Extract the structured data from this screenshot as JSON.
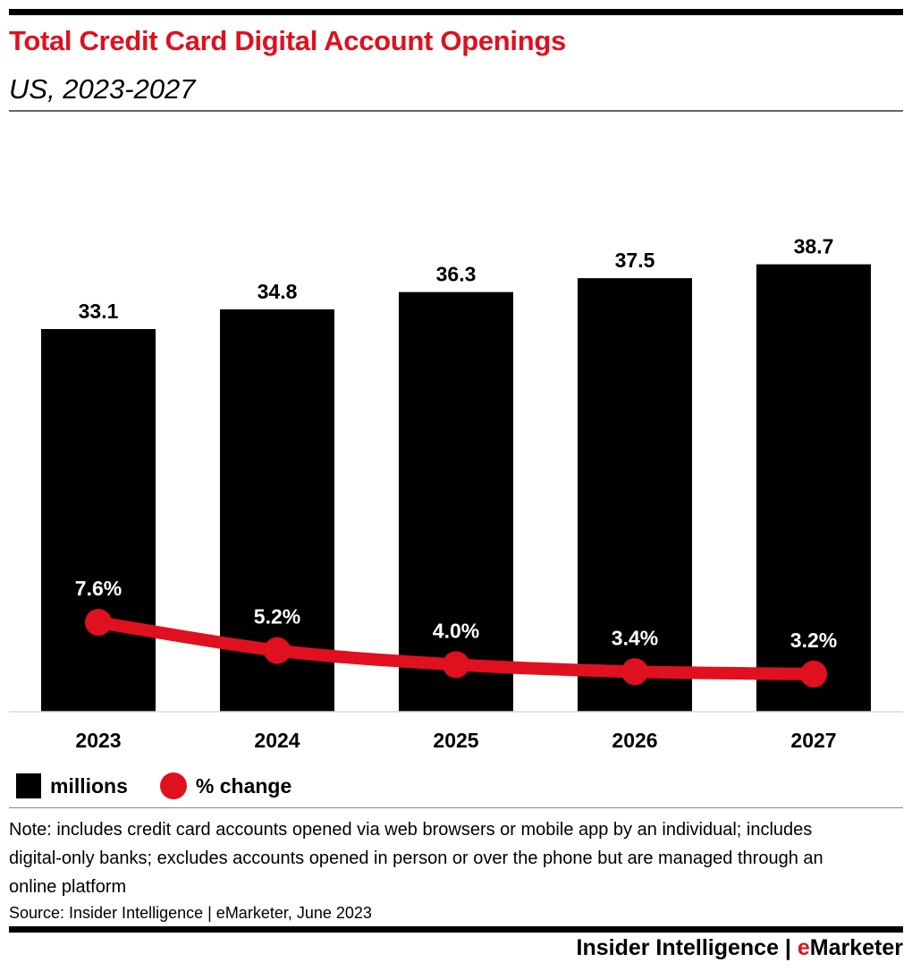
{
  "chart_data": {
    "type": "bar",
    "title": "Total Credit Card Digital Account Openings",
    "subtitle": "US, 2023-2027",
    "categories": [
      "2023",
      "2024",
      "2025",
      "2026",
      "2027"
    ],
    "series": [
      {
        "name": "millions",
        "type": "bar",
        "values": [
          33.1,
          34.8,
          36.3,
          37.5,
          38.7
        ],
        "labels": [
          "33.1",
          "34.8",
          "36.3",
          "37.5",
          "38.7"
        ],
        "color": "#000000"
      },
      {
        "name": "% change",
        "type": "line",
        "values": [
          7.6,
          5.2,
          4.0,
          3.4,
          3.2
        ],
        "labels": [
          "7.6%",
          "5.2%",
          "4.0%",
          "3.4%",
          "3.2%"
        ],
        "color": "#e0101e"
      }
    ],
    "grid": false,
    "legend_position": "bottom-left"
  },
  "legend": {
    "bar": "millions",
    "line": "% change"
  },
  "note": "Note: includes credit card accounts opened via web browsers or mobile app by an individual; includes digital-only banks; excludes accounts opened in person or over the phone but are managed through an online platform",
  "source": "Source: Insider Intelligence | eMarketer, June 2023",
  "logo": {
    "left": "Insider Intelligence",
    "sep": " | ",
    "e": "e",
    "right": "Marketer"
  }
}
